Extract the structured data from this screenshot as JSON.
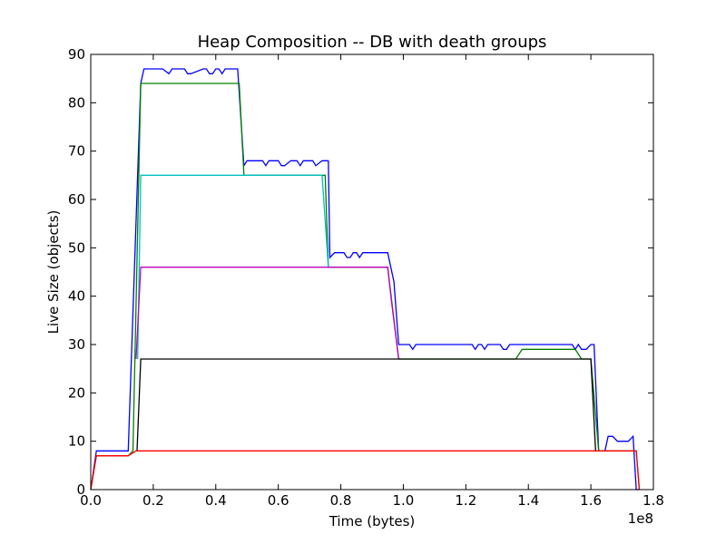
{
  "chart_data": {
    "type": "line",
    "title": "Heap Composition -- DB with death groups",
    "xlabel": "Time (bytes)",
    "ylabel": "Live Size (objects)",
    "x_offset_text": "1e8",
    "xlim": [
      0,
      1.8
    ],
    "ylim": [
      0,
      90
    ],
    "x_ticks": [
      0,
      0.2,
      0.4,
      0.6,
      0.8,
      1.0,
      1.2,
      1.4,
      1.6,
      1.8
    ],
    "x_tick_labels": [
      "0.0",
      "0.2",
      "0.4",
      "0.6",
      "0.8",
      "1.0",
      "1.2",
      "1.4",
      "1.6",
      "1.8"
    ],
    "y_ticks": [
      0,
      10,
      20,
      30,
      40,
      50,
      60,
      70,
      80,
      90
    ],
    "y_tick_labels": [
      "0",
      "10",
      "20",
      "30",
      "40",
      "50",
      "60",
      "70",
      "80",
      "90"
    ],
    "grid": false,
    "series": [
      {
        "color": "#0000ff",
        "x": [
          0.0,
          0.018,
          0.12,
          0.16,
          0.17,
          0.23,
          0.25,
          0.26,
          0.3,
          0.31,
          0.32,
          0.36,
          0.37,
          0.38,
          0.39,
          0.4,
          0.41,
          0.42,
          0.43,
          0.47,
          0.49,
          0.5,
          0.55,
          0.56,
          0.57,
          0.6,
          0.61,
          0.62,
          0.64,
          0.65,
          0.66,
          0.67,
          0.68,
          0.7,
          0.71,
          0.72,
          0.74,
          0.76,
          0.765,
          0.78,
          0.81,
          0.82,
          0.83,
          0.84,
          0.85,
          0.86,
          0.87,
          0.88,
          0.89,
          0.95,
          0.97,
          0.985,
          1.02,
          1.03,
          1.04,
          1.2,
          1.21,
          1.22,
          1.23,
          1.24,
          1.25,
          1.26,
          1.27,
          1.31,
          1.32,
          1.33,
          1.34,
          1.35,
          1.36,
          1.37,
          1.38,
          1.39,
          1.4,
          1.43,
          1.54,
          1.55,
          1.56,
          1.57,
          1.585,
          1.6,
          1.61,
          1.625,
          1.645,
          1.655,
          1.67,
          1.685,
          1.72,
          1.735,
          1.745,
          1.755
        ],
        "y": [
          0,
          8,
          8,
          84,
          87,
          87,
          86,
          87,
          87,
          86,
          86,
          87,
          87,
          86,
          86,
          87,
          87,
          86,
          87,
          87,
          67,
          68,
          68,
          67,
          68,
          68,
          67,
          67,
          68,
          68,
          68,
          67,
          68,
          68,
          68,
          67,
          68,
          68,
          48,
          49,
          49,
          48,
          48,
          49,
          49,
          48,
          49,
          49,
          49,
          49,
          43,
          30,
          30,
          29,
          30,
          30,
          30,
          30,
          29,
          30,
          30,
          29,
          30,
          30,
          29,
          29,
          30,
          30,
          30,
          30,
          30,
          30,
          30,
          30,
          30,
          29,
          30,
          29,
          29,
          30,
          30,
          8,
          8,
          11,
          11,
          10,
          10,
          11,
          0,
          0
        ]
      },
      {
        "color": "#008000",
        "x": [
          0.0,
          0.018,
          0.12,
          0.135,
          0.16,
          0.475,
          0.49,
          0.75,
          0.76,
          0.95,
          0.985,
          1.36,
          1.38,
          1.55,
          1.57,
          1.6,
          1.625,
          1.745,
          1.755
        ],
        "y": [
          0,
          7,
          7,
          8,
          84,
          84,
          65,
          65,
          46,
          46,
          27,
          27,
          29,
          29,
          27,
          27,
          8,
          8,
          0
        ]
      },
      {
        "color": "#00bfbf",
        "x": [
          0.15,
          0.16,
          0.74,
          0.76
        ],
        "y": [
          27,
          65,
          65,
          46
        ]
      },
      {
        "color": "#bf00bf",
        "x": [
          0.145,
          0.16,
          0.95,
          0.96,
          0.985
        ],
        "y": [
          27,
          46,
          46,
          40,
          27
        ]
      },
      {
        "color": "#000000",
        "x": [
          0.148,
          0.16,
          1.6,
          1.615
        ],
        "y": [
          8,
          27,
          27,
          8
        ]
      },
      {
        "color": "#ff0000",
        "x": [
          0.0,
          0.018,
          0.12,
          0.145,
          1.745,
          1.755
        ],
        "y": [
          0,
          7,
          7,
          8,
          8,
          0
        ]
      }
    ]
  }
}
